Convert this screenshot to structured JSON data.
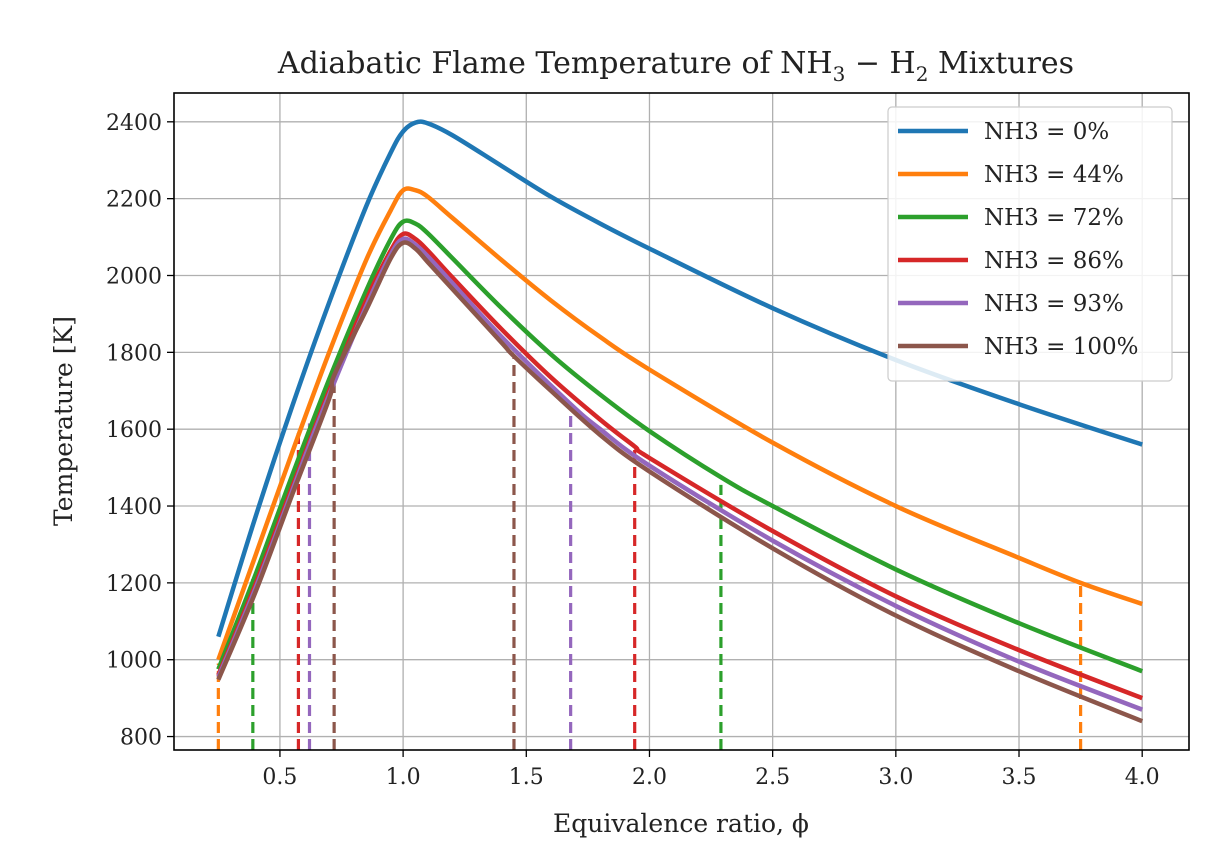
{
  "chart_data": {
    "type": "line",
    "title": "Adiabatic Flame Temperature of NH3 − H2 Mixtures",
    "title_parts": {
      "pre": "Adiabatic Flame Temperature of NH",
      "sub1": "3",
      "mid": " − H",
      "sub2": "2",
      "post": " Mixtures"
    },
    "xlabel": "Equivalence ratio, ϕ",
    "ylabel": "Temperature [K]",
    "xlim": [
      0.07,
      4.19
    ],
    "ylim": [
      765,
      2475
    ],
    "xticks": [
      0.5,
      1.0,
      1.5,
      2.0,
      2.5,
      3.0,
      3.5,
      4.0
    ],
    "xtick_labels": [
      "0.5",
      "1.0",
      "1.5",
      "2.0",
      "2.5",
      "3.0",
      "3.5",
      "4.0"
    ],
    "yticks": [
      800,
      1000,
      1200,
      1400,
      1600,
      1800,
      2000,
      2200,
      2400
    ],
    "ytick_labels": [
      "800",
      "1000",
      "1200",
      "1400",
      "1600",
      "1800",
      "2000",
      "2200",
      "2400"
    ],
    "grid": true,
    "legend_position": "top-right",
    "series": [
      {
        "name": "NH3 = 0%",
        "color": "#1f77b4",
        "x": [
          0.25,
          0.4,
          0.55,
          0.7,
          0.85,
          0.95,
          1.0,
          1.05,
          1.1,
          1.2,
          1.4,
          1.6,
          1.8,
          2.0,
          2.5,
          3.0,
          3.5,
          4.0
        ],
        "y": [
          1060,
          1370,
          1660,
          1930,
          2180,
          2320,
          2375,
          2398,
          2396,
          2365,
          2285,
          2205,
          2135,
          2070,
          1915,
          1780,
          1665,
          1560
        ]
      },
      {
        "name": "NH3 = 44%",
        "color": "#ff7f0e",
        "x": [
          0.25,
          0.4,
          0.55,
          0.7,
          0.85,
          0.95,
          1.0,
          1.05,
          1.1,
          1.2,
          1.4,
          1.6,
          1.8,
          2.0,
          2.5,
          3.0,
          3.5,
          3.75,
          4.0
        ],
        "y": [
          1000,
          1270,
          1540,
          1800,
          2040,
          2170,
          2222,
          2222,
          2205,
          2150,
          2040,
          1935,
          1840,
          1755,
          1565,
          1400,
          1265,
          1200,
          1145
        ]
      },
      {
        "name": "NH3 = 72%",
        "color": "#2ca02c",
        "x": [
          0.25,
          0.4,
          0.55,
          0.7,
          0.85,
          0.95,
          1.0,
          1.05,
          1.1,
          1.2,
          1.4,
          1.6,
          1.8,
          2.0,
          2.29,
          2.5,
          3.0,
          3.5,
          4.0
        ],
        "y": [
          975,
          1220,
          1480,
          1730,
          1960,
          2095,
          2140,
          2135,
          2110,
          2045,
          1915,
          1795,
          1690,
          1595,
          1475,
          1400,
          1235,
          1095,
          970
        ]
      },
      {
        "name": "NH3 = 86%",
        "color": "#d62728",
        "x": [
          0.25,
          0.4,
          0.55,
          0.7,
          0.85,
          0.95,
          1.0,
          1.05,
          1.1,
          1.2,
          1.4,
          1.6,
          1.8,
          1.94,
          2.0,
          2.5,
          3.0,
          3.5,
          4.0
        ],
        "y": [
          960,
          1195,
          1450,
          1700,
          1935,
          2065,
          2108,
          2095,
          2065,
          1995,
          1860,
          1735,
          1625,
          1555,
          1525,
          1335,
          1165,
          1025,
          900
        ]
      },
      {
        "name": "NH3 = 93%",
        "color": "#9467bd",
        "x": [
          0.25,
          0.4,
          0.55,
          0.62,
          0.7,
          0.85,
          0.95,
          1.0,
          1.05,
          1.1,
          1.2,
          1.4,
          1.68,
          1.8,
          2.0,
          2.5,
          3.0,
          3.5,
          4.0
        ],
        "y": [
          955,
          1185,
          1440,
          1560,
          1690,
          1920,
          2055,
          2095,
          2080,
          2050,
          1980,
          1840,
          1665,
          1600,
          1505,
          1310,
          1140,
          995,
          870
        ]
      },
      {
        "name": "NH3 = 100%",
        "color": "#8c564b",
        "x": [
          0.25,
          0.4,
          0.55,
          0.7,
          0.72,
          0.85,
          0.95,
          1.0,
          1.05,
          1.1,
          1.2,
          1.4,
          1.45,
          1.6,
          1.8,
          2.0,
          2.5,
          3.0,
          3.5,
          4.0
        ],
        "y": [
          948,
          1175,
          1430,
          1680,
          1740,
          1910,
          2045,
          2085,
          2070,
          2035,
          1965,
          1825,
          1790,
          1700,
          1585,
          1490,
          1290,
          1115,
          970,
          840
        ]
      }
    ],
    "vlines": [
      {
        "series": "NH3 = 44%",
        "color": "#ff7f0e",
        "x": 0.25,
        "y": 990
      },
      {
        "series": "NH3 = 44%",
        "color": "#ff7f0e",
        "x": 3.75,
        "y": 1200
      },
      {
        "series": "NH3 = 72%",
        "color": "#2ca02c",
        "x": 0.39,
        "y": 1210
      },
      {
        "series": "NH3 = 72%",
        "color": "#2ca02c",
        "x": 2.29,
        "y": 1455
      },
      {
        "series": "NH3 = 86%",
        "color": "#d62728",
        "x": 0.575,
        "y": 1595
      },
      {
        "series": "NH3 = 86%",
        "color": "#d62728",
        "x": 1.94,
        "y": 1550
      },
      {
        "series": "NH3 = 93%",
        "color": "#9467bd",
        "x": 0.62,
        "y": 1615
      },
      {
        "series": "NH3 = 93%",
        "color": "#9467bd",
        "x": 1.68,
        "y": 1665
      },
      {
        "series": "NH3 = 100%",
        "color": "#8c564b",
        "x": 0.72,
        "y": 1740
      },
      {
        "series": "NH3 = 100%",
        "color": "#8c564b",
        "x": 1.45,
        "y": 1790
      }
    ]
  }
}
